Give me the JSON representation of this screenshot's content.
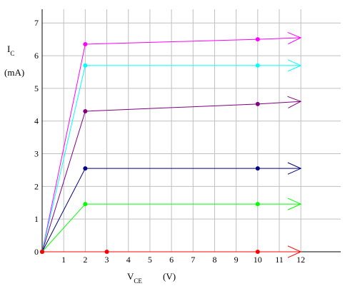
{
  "chart_data": {
    "type": "line",
    "title": "",
    "y_label_main": "I",
    "y_label_sub": "C",
    "y_label_unit": "(mA)",
    "x_label_main": "V",
    "x_label_sub": "CE",
    "x_label_unit": "(V)",
    "x_ticks": [
      "1",
      "2",
      "3",
      "4",
      "5",
      "6",
      "7",
      "8",
      "9",
      "10",
      "11",
      "12"
    ],
    "y_ticks": [
      "0",
      "1",
      "2",
      "3",
      "4",
      "5",
      "6",
      "7"
    ],
    "x_tick_values": [
      1,
      2,
      3,
      4,
      5,
      6,
      7,
      8,
      9,
      10,
      11,
      12
    ],
    "y_tick_values": [
      0,
      1,
      2,
      3,
      4,
      5,
      6,
      7
    ],
    "xlim": [
      0,
      13.85
    ],
    "ylim": [
      0,
      7.42
    ],
    "grid": true,
    "axis_arrow_end_x": 12,
    "series": [
      {
        "color": "#ff00ff",
        "points": [
          [
            0,
            0
          ],
          [
            2,
            6.35
          ],
          [
            10,
            6.5
          ],
          [
            12,
            6.55
          ]
        ],
        "markers": [
          [
            2,
            6.35
          ],
          [
            10,
            6.5
          ]
        ]
      },
      {
        "color": "#00ffff",
        "points": [
          [
            0,
            0
          ],
          [
            2,
            5.7
          ],
          [
            10,
            5.7
          ],
          [
            12,
            5.7
          ]
        ],
        "markers": [
          [
            2,
            5.7
          ],
          [
            10,
            5.7
          ]
        ]
      },
      {
        "color": "#800080",
        "points": [
          [
            0,
            0
          ],
          [
            2,
            4.3
          ],
          [
            10,
            4.52
          ],
          [
            12,
            4.6
          ]
        ],
        "markers": [
          [
            2,
            4.3
          ],
          [
            10,
            4.52
          ]
        ]
      },
      {
        "color": "#000080",
        "points": [
          [
            0,
            0
          ],
          [
            2,
            2.55
          ],
          [
            10,
            2.55
          ],
          [
            12,
            2.55
          ]
        ],
        "markers": [
          [
            2,
            2.55
          ],
          [
            10,
            2.55
          ]
        ]
      },
      {
        "color": "#00ff00",
        "points": [
          [
            0,
            0
          ],
          [
            2,
            1.46
          ],
          [
            10,
            1.46
          ],
          [
            12,
            1.46
          ]
        ],
        "markers": [
          [
            2,
            1.46
          ],
          [
            10,
            1.46
          ]
        ]
      },
      {
        "color": "#ff0000",
        "points": [
          [
            0,
            0
          ],
          [
            12,
            0
          ]
        ],
        "markers": [
          [
            3,
            0
          ],
          [
            10,
            0
          ]
        ]
      }
    ]
  }
}
